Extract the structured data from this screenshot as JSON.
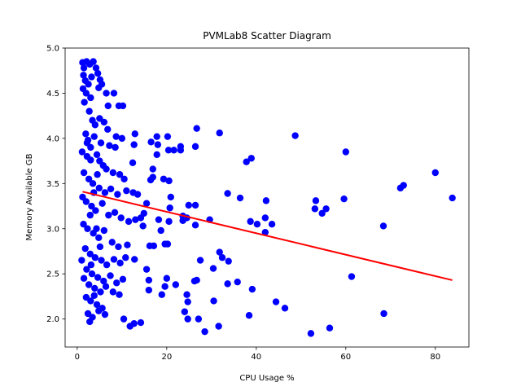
{
  "chart_data": {
    "type": "scatter",
    "title": "PVMLab8 Scatter Diagram",
    "x_label": "CPU Usage %",
    "y_label": "Memory Available GB",
    "color": "#0000ff",
    "x": [
      83.8,
      80,
      72.9,
      72.2,
      68.4,
      68.5,
      61.3,
      60,
      59.6,
      56.4,
      52.2,
      55.6,
      54.7,
      53.3,
      53.1,
      48.7,
      46.4,
      44.4,
      43.5,
      42.2,
      42,
      42,
      40.2,
      38.7,
      38.9,
      37.8,
      39.1,
      38.4,
      35.8,
      33.6,
      33.6,
      36.4,
      33.8,
      31.8,
      32.4,
      31.8,
      31.6,
      30.4,
      30.5,
      29.6,
      28.5,
      27.5,
      26.7,
      26.4,
      26.4,
      26.4,
      26.7,
      26.2,
      27.1,
      24.9,
      24.5,
      24.7,
      24,
      24.7,
      24.5,
      23.6,
      23.6,
      23.1,
      23.1,
      21.6,
      20.2,
      20.4,
      17.8,
      17.8,
      20.5,
      19.3,
      20.9,
      20.7,
      20.5,
      20.2,
      19.6,
      20,
      19.6,
      22,
      18.9,
      18.7,
      18.2,
      17.1,
      16.2,
      16.4,
      16.9,
      16.9,
      16.5,
      18,
      16,
      16,
      15.5,
      15.5,
      14.9,
      14.7,
      14.2,
      12.7,
      11.8,
      12.9,
      12.7,
      12.4,
      10.4,
      8.7,
      10,
      10.2,
      9.3,
      8.2,
      6.9,
      6.5,
      1.2,
      1.5,
      2.1,
      2.8,
      3.6,
      4.2,
      1.4,
      1.8,
      2.5,
      3.2,
      5.1,
      4.6,
      1.3,
      2.0,
      3.0,
      4.8,
      5.5,
      1.6,
      2.7,
      3.4,
      4.0,
      5.0,
      6.0,
      6.8,
      1.9,
      2.4,
      3.8,
      5.3,
      7.2,
      8.5,
      1.1,
      2.2,
      3.0,
      4.4,
      5.8,
      6.5,
      8.0,
      9.5,
      10.5,
      1.5,
      2.6,
      3.5,
      4.9,
      6.2,
      7.5,
      9.0,
      11.0,
      12.5,
      13.5,
      1.2,
      2.0,
      3.2,
      4.1,
      5.6,
      7.0,
      8.4,
      9.8,
      11.5,
      13.0,
      14.2,
      1.4,
      2.3,
      3.6,
      4.8,
      6.0,
      7.8,
      9.2,
      11.2,
      1.8,
      2.9,
      4.0,
      5.4,
      6.6,
      8.2,
      9.6,
      10.8,
      12.8,
      1.0,
      2.1,
      3.3,
      4.6,
      5.9,
      7.4,
      8.8,
      10.2,
      1.5,
      2.6,
      3.9,
      5.2,
      6.4,
      8.0,
      9.4,
      2.0,
      3.0,
      4.4,
      5.6,
      2.4,
      3.4,
      2.8,
      4.8,
      6.2,
      3.8,
      2.2,
      3.0,
      4.5,
      5.0,
      3.7,
      2.9,
      4.3,
      5.1,
      3.1
    ],
    "y": [
      3.34,
      3.62,
      3.48,
      3.45,
      3.03,
      2.06,
      2.47,
      3.85,
      3.33,
      1.9,
      1.84,
      3.22,
      3.17,
      3.31,
      3.22,
      4.03,
      2.12,
      2.19,
      3.05,
      3.31,
      3.12,
      2.96,
      3.05,
      3.08,
      3.78,
      3.74,
      2.33,
      2.04,
      2.41,
      2.39,
      3.39,
      3.34,
      2.64,
      2.74,
      2.68,
      4.06,
      1.92,
      2.56,
      2.2,
      3.1,
      1.86,
      2.65,
      4.11,
      3.91,
      3.26,
      3.04,
      2.43,
      2.42,
      2.0,
      3.26,
      3.12,
      2.0,
      2.08,
      2.19,
      2.27,
      3.14,
      3.09,
      3.91,
      3.87,
      3.87,
      4.02,
      3.87,
      4.02,
      3.82,
      3.53,
      3.55,
      3.35,
      3.23,
      3.08,
      2.83,
      2.83,
      2.45,
      2.36,
      2.38,
      2.27,
      2.98,
      3.1,
      2.81,
      2.81,
      3.54,
      3.57,
      3.66,
      3.96,
      3.93,
      2.32,
      2.43,
      2.55,
      3.28,
      3.17,
      3.03,
      1.96,
      1.95,
      1.92,
      4.05,
      3.93,
      3.73,
      2.0,
      4.02,
      4,
      4.36,
      4.36,
      4.5,
      4.36,
      4.5,
      4.84,
      4.78,
      4.85,
      4.82,
      4.85,
      4.78,
      4.7,
      4.64,
      4.6,
      4.68,
      4.65,
      4.72,
      4.55,
      4.5,
      4.45,
      4.56,
      4.6,
      4.4,
      4.3,
      4.2,
      4.15,
      4.22,
      4.18,
      4.1,
      4.05,
      3.98,
      4.02,
      3.95,
      3.92,
      3.9,
      3.85,
      3.8,
      3.76,
      3.82,
      3.7,
      3.66,
      3.62,
      3.6,
      3.55,
      3.62,
      3.55,
      3.5,
      3.45,
      3.4,
      3.44,
      3.38,
      3.42,
      3.4,
      3.38,
      3.35,
      3.3,
      3.25,
      3.2,
      3.28,
      3.15,
      3.18,
      3.12,
      3.08,
      3.1,
      3.12,
      3.05,
      3.0,
      2.95,
      2.9,
      2.98,
      2.85,
      2.8,
      2.82,
      2.78,
      2.72,
      2.68,
      2.65,
      2.6,
      2.66,
      2.62,
      2.68,
      2.66,
      2.65,
      2.55,
      2.5,
      2.46,
      2.42,
      2.48,
      2.4,
      2.44,
      2.45,
      2.38,
      2.34,
      2.3,
      2.36,
      2.3,
      2.27,
      2.24,
      2.2,
      2.16,
      2.12,
      2.06,
      2.02,
      1.97,
      2.09,
      2.05,
      2.26,
      3.95,
      3.9,
      3.6,
      3.75,
      3.4,
      3.15,
      3.0,
      2.8,
      2.6
    ],
    "fit_line": {
      "x": [
        1.2,
        83.8
      ],
      "y": [
        3.41,
        2.43
      ],
      "color": "#ff0000"
    },
    "xlim": [
      -2.7,
      87.5
    ],
    "ylim": [
      1.69,
      5.0
    ],
    "xticks": [
      0,
      20,
      40,
      60,
      80
    ],
    "yticks": [
      {
        "value": 2.0,
        "label": "2.0"
      },
      2.5,
      {
        "value": 3.0,
        "label": "3.0"
      },
      3.5,
      {
        "value": 4.0,
        "label": "4.0"
      },
      4.5,
      {
        "value": 5.0,
        "label": "5.0"
      }
    ]
  }
}
